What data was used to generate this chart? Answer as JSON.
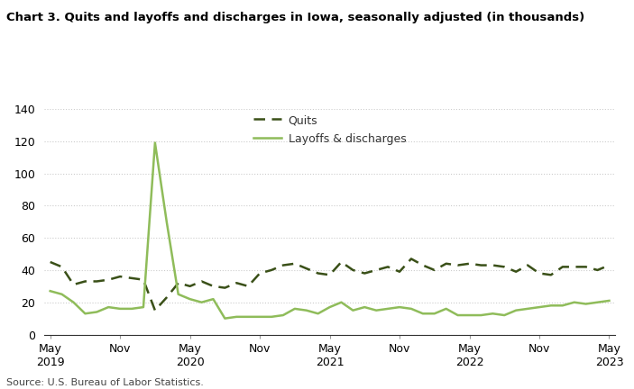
{
  "title": "Chart 3. Quits and layoffs and discharges in Iowa, seasonally adjusted (in thousands)",
  "source": "Source: U.S. Bureau of Labor Statistics.",
  "legend_quits": "Quits",
  "legend_layoffs": "Layoffs & discharges",
  "quits_color": "#3a5018",
  "layoffs_color": "#8fbc5a",
  "background_color": "#ffffff",
  "ylim": [
    0,
    140
  ],
  "yticks": [
    0,
    20,
    40,
    60,
    80,
    100,
    120,
    140
  ],
  "x_tick_labels": [
    "May\n2019",
    "Nov",
    "May\n2020",
    "Nov",
    "May\n2021",
    "Nov",
    "May\n2022",
    "Nov",
    "May\n2023"
  ],
  "x_tick_positions": [
    0,
    6,
    12,
    18,
    24,
    30,
    36,
    42,
    48
  ],
  "quits": [
    45,
    42,
    31,
    33,
    33,
    34,
    36,
    35,
    34,
    15,
    23,
    32,
    30,
    33,
    30,
    29,
    32,
    30,
    38,
    40,
    43,
    44,
    41,
    38,
    37,
    45,
    40,
    38,
    40,
    42,
    39,
    47,
    43,
    40,
    44,
    43,
    44,
    43,
    43,
    42,
    39,
    43,
    38,
    37,
    42,
    42,
    42,
    40,
    43
  ],
  "layoffs": [
    27,
    25,
    20,
    13,
    14,
    17,
    16,
    16,
    17,
    119,
    70,
    25,
    22,
    20,
    22,
    10,
    11,
    11,
    11,
    11,
    12,
    16,
    15,
    13,
    17,
    20,
    15,
    17,
    15,
    16,
    17,
    16,
    13,
    13,
    16,
    12,
    12,
    12,
    13,
    12,
    15,
    16,
    17,
    18,
    18,
    20,
    19,
    20,
    21
  ]
}
